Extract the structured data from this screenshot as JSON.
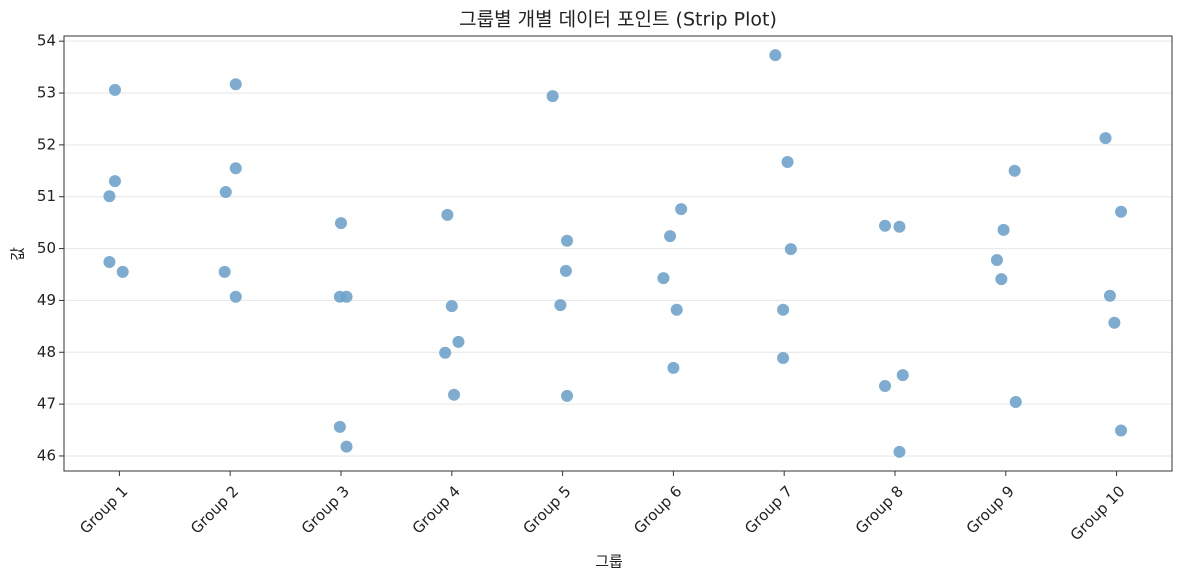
{
  "chart_data": {
    "type": "scatter",
    "title": "그룹별 개별 데이터 포인트 (Strip Plot)",
    "x_label": "그룹",
    "y_label": "값",
    "x": [
      -0.04,
      -0.04,
      -0.09,
      -0.09,
      0.03,
      1.05,
      1.05,
      0.96,
      0.95,
      1.05,
      2.0,
      1.99,
      2.05,
      1.99,
      2.05,
      2.96,
      3.0,
      3.06,
      2.94,
      3.02,
      3.91,
      4.04,
      4.03,
      3.98,
      4.04,
      5.07,
      4.97,
      4.91,
      5.03,
      5.0,
      5.92,
      6.03,
      6.06,
      5.99,
      5.99,
      6.91,
      7.04,
      7.07,
      6.91,
      7.04,
      8.08,
      7.98,
      7.92,
      7.96,
      8.09,
      8.9,
      9.04,
      8.94,
      8.98,
      9.04
    ],
    "values": [
      53.06,
      51.3,
      51.01,
      49.74,
      49.55,
      53.17,
      51.55,
      51.09,
      49.55,
      49.07,
      50.49,
      49.07,
      49.07,
      46.56,
      46.18,
      50.65,
      48.89,
      48.2,
      47.99,
      47.18,
      52.94,
      50.15,
      49.57,
      48.91,
      47.16,
      50.76,
      50.24,
      49.43,
      48.82,
      47.7,
      53.73,
      51.67,
      49.99,
      48.82,
      47.89,
      50.44,
      50.42,
      47.56,
      47.35,
      46.08,
      51.5,
      50.36,
      49.78,
      49.41,
      47.04,
      52.13,
      50.71,
      49.09,
      48.57,
      46.49
    ],
    "color": "#6fa3cb",
    "xlim": [
      -0.5,
      9.5
    ],
    "xticks": [
      {
        "value": 0,
        "label": "Group 1"
      },
      {
        "value": 1,
        "label": "Group 2"
      },
      {
        "value": 2,
        "label": "Group 3"
      },
      {
        "value": 3,
        "label": "Group 4"
      },
      {
        "value": 4,
        "label": "Group 5"
      },
      {
        "value": 5,
        "label": "Group 6"
      },
      {
        "value": 6,
        "label": "Group 7"
      },
      {
        "value": 7,
        "label": "Group 8"
      },
      {
        "value": 8,
        "label": "Group 9"
      },
      {
        "value": 9,
        "label": "Group 10"
      }
    ],
    "ylim": [
      45.71,
      54.1
    ],
    "yticks": [
      46,
      47,
      48,
      49,
      50,
      51,
      52,
      53,
      54
    ],
    "grid": true
  }
}
